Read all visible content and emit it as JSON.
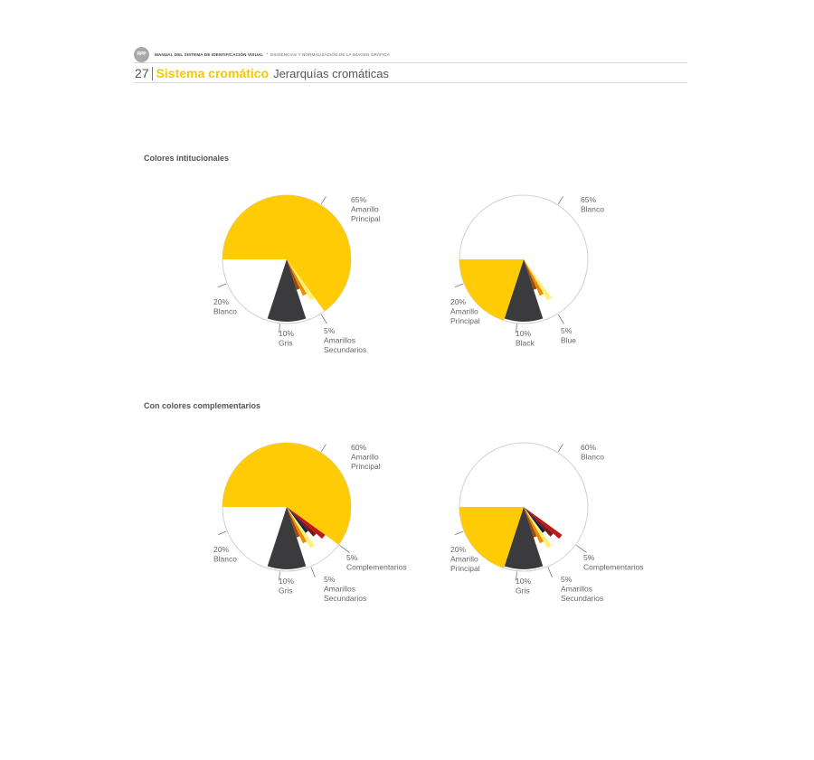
{
  "header": {
    "logo_text": "RPP",
    "manual_title": "MANUAL DEL SISTEMA DE IDENTIFICACIÓN VISUAL",
    "separator": "•",
    "manual_subtitle": "EXIGENCIAS Y NORMALIZACIÓN DE LA IMAGEN GRÁFICA",
    "page_number": "27",
    "section_title": "Sistema cromático",
    "section_subtitle": "Jerarquías cromáticas"
  },
  "groups": [
    {
      "heading": "Colores intitucionales"
    },
    {
      "heading": "Con colores complementarios"
    }
  ],
  "colors": {
    "yellow": "#ffcb05",
    "white": "#ffffff",
    "gray": "#3b3b3d",
    "light_yellow": "#fff07a",
    "orange": "#ef8b00",
    "brown": "#9a4a11",
    "dark_red": "#7a1a16",
    "red": "#c0161c",
    "navy": "#0d2150",
    "outline": "#d0d0d0",
    "label": "#666666"
  },
  "chart_data": [
    {
      "type": "pie",
      "group": "Colores intitucionales",
      "slices": [
        {
          "label": "Amarillo Principal",
          "value": 65,
          "percent": "65%",
          "color": "#ffcb05",
          "text_lines": [
            "65%",
            "Amarillo",
            "Principal"
          ]
        },
        {
          "label": "Amarillos Secundarios",
          "value": 5,
          "percent": "5%",
          "color": "#fff07a",
          "sub": [
            "#fff07a",
            "#ef8b00",
            "#9a4a11"
          ],
          "text_lines": [
            "5%",
            "Amarillos",
            "Secundarios"
          ]
        },
        {
          "label": "Gris",
          "value": 10,
          "percent": "10%",
          "color": "#3b3b3d",
          "text_lines": [
            "10%",
            "Gris"
          ]
        },
        {
          "label": "Blanco",
          "value": 20,
          "percent": "20%",
          "color": "#ffffff",
          "text_lines": [
            "20%",
            "Blanco"
          ]
        }
      ]
    },
    {
      "type": "pie",
      "group": "Colores intitucionales",
      "slices": [
        {
          "label": "Blanco",
          "value": 65,
          "percent": "65%",
          "color": "#ffffff",
          "text_lines": [
            "65%",
            "Blanco"
          ]
        },
        {
          "label": "Blue",
          "value": 5,
          "percent": "5%",
          "color": "#fff07a",
          "sub": [
            "#fff07a",
            "#ef8b00",
            "#9a4a11"
          ],
          "text_lines": [
            "5%",
            "Blue"
          ]
        },
        {
          "label": "Black",
          "value": 10,
          "percent": "10%",
          "color": "#3b3b3d",
          "text_lines": [
            "10%",
            "Black"
          ]
        },
        {
          "label": "Amarillo Principal",
          "value": 20,
          "percent": "20%",
          "color": "#ffcb05",
          "text_lines": [
            "20%",
            "Amarillo",
            "Principal"
          ]
        }
      ]
    },
    {
      "type": "pie",
      "group": "Con colores complementarios",
      "slices": [
        {
          "label": "Amarillo Principal",
          "value": 60,
          "percent": "60%",
          "color": "#ffcb05",
          "text_lines": [
            "60%",
            "Amarillo",
            "Principal"
          ]
        },
        {
          "label": "Complementarios",
          "value": 5,
          "percent": "5%",
          "color": "#c0161c",
          "sub": [
            "#c0161c",
            "#7a1a16",
            "#0d2150"
          ],
          "text_lines": [
            "5%",
            "Complementarios"
          ]
        },
        {
          "label": "Amarillos Secundarios",
          "value": 5,
          "percent": "5%",
          "color": "#fff07a",
          "sub": [
            "#fff07a",
            "#ef8b00",
            "#9a4a11"
          ],
          "text_lines": [
            "5%",
            "Amarillos",
            "Secundarios"
          ]
        },
        {
          "label": "Gris",
          "value": 10,
          "percent": "10%",
          "color": "#3b3b3d",
          "text_lines": [
            "10%",
            "Gris"
          ]
        },
        {
          "label": "Blanco",
          "value": 20,
          "percent": "20%",
          "color": "#ffffff",
          "text_lines": [
            "20%",
            "Blanco"
          ]
        }
      ]
    },
    {
      "type": "pie",
      "group": "Con colores complementarios",
      "slices": [
        {
          "label": "Blanco",
          "value": 60,
          "percent": "60%",
          "color": "#ffffff",
          "text_lines": [
            "60%",
            "Blanco"
          ]
        },
        {
          "label": "Complementarios",
          "value": 5,
          "percent": "5%",
          "color": "#c0161c",
          "sub": [
            "#c0161c",
            "#7a1a16",
            "#0d2150"
          ],
          "text_lines": [
            "5%",
            "Complementarios"
          ]
        },
        {
          "label": "Amarillos Secundarios",
          "value": 5,
          "percent": "5%",
          "color": "#fff07a",
          "sub": [
            "#fff07a",
            "#ef8b00",
            "#9a4a11"
          ],
          "text_lines": [
            "5%",
            "Amarillos",
            "Secundarios"
          ]
        },
        {
          "label": "Gris",
          "value": 10,
          "percent": "10%",
          "color": "#3b3b3d",
          "text_lines": [
            "10%",
            "Gris"
          ]
        },
        {
          "label": "Amarillo Principal",
          "value": 20,
          "percent": "20%",
          "color": "#ffcb05",
          "text_lines": [
            "20%",
            "Amarillo",
            "Principal"
          ]
        }
      ]
    }
  ]
}
